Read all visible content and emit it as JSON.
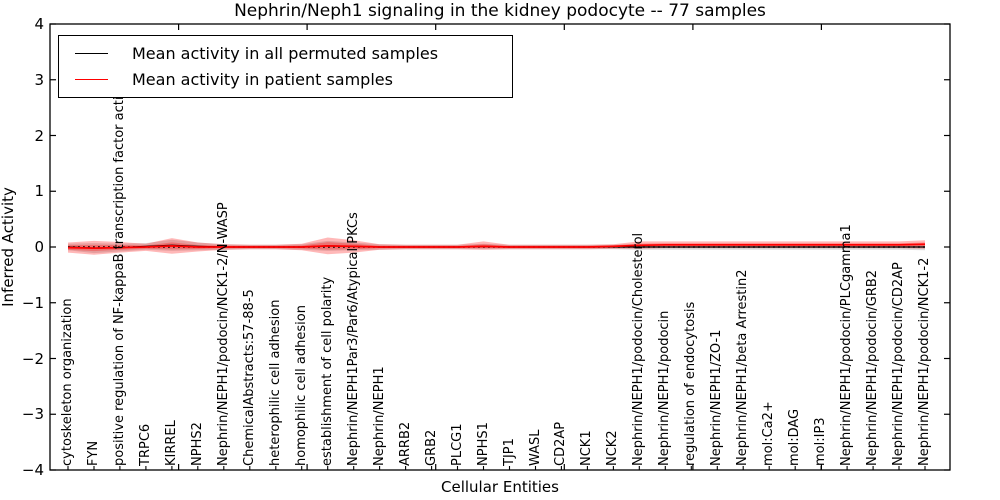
{
  "title": "Nephrin/Neph1 signaling in the kidney podocyte -- 77 samples",
  "legend": {
    "items": [
      {
        "label": "Mean activity in all permuted samples",
        "color": "#000000"
      },
      {
        "label": "Mean activity in patient samples",
        "color": "#ff0000"
      }
    ],
    "position": "upper-left"
  },
  "axes": {
    "ylabel": "Inferred Activity",
    "xlabel": "Cellular Entities"
  },
  "chart_data": {
    "type": "line",
    "title": "Nephrin/Neph1 signaling in the kidney podocyte -- 77 samples",
    "xlabel": "Cellular Entities",
    "ylabel": "Inferred Activity",
    "ylim": [
      -4,
      4
    ],
    "xlim": [
      0,
      35
    ],
    "grid": false,
    "legend_position": "upper-left",
    "ytick_labels": [
      "4",
      "3",
      "2",
      "1",
      "0",
      "−1",
      "−2",
      "−3",
      "−4"
    ],
    "zero_line": {
      "y": 0,
      "style": "dotted",
      "color": "#000000"
    },
    "colors": {
      "permuted_band": "rgba(0,0,0,0.14)",
      "patient_band": "rgba(255,0,0,0.28)"
    },
    "categories": [
      "cytoskeleton organization",
      "FYN",
      "positive regulation of NF-kappaB transcription factor activity",
      "TRPC6",
      "KIRREL",
      "NPHS2",
      "Nephrin/NEPH1/podocin/NCK1-2/N-WASP",
      "ChemicalAbstracts:57-88-5",
      "heterophilic cell adhesion",
      "homophilic cell adhesion",
      "establishment of cell polarity",
      "Nephrin/NEPH1Par3/Par6/Atypical PKCs",
      "Nephrin/NEPH1",
      "ARRB2",
      "GRB2",
      "PLCG1",
      "NPHS1",
      "TJP1",
      "WASL",
      "CD2AP",
      "NCK1",
      "NCK2",
      "Nephrin/NEPH1/podocin/Cholesterol",
      "Nephrin/NEPH1/podocin",
      "regulation of endocytosis",
      "Nephrin/NEPH1/ZO-1",
      "Nephrin/NEPH1/beta Arrestin2",
      "mol:Ca2+",
      "mol:DAG",
      "mol:IP3",
      "Nephrin/NEPH1/podocin/PLCgamma1",
      "Nephrin/NEPH1/podocin/GRB2",
      "Nephrin/NEPH1/podocin/CD2AP",
      "Nephrin/NEPH1/podocin/NCK1-2"
    ],
    "series": [
      {
        "name": "Mean activity in all permuted samples",
        "color": "#000000",
        "values": [
          0.0,
          -0.02,
          -0.01,
          0.01,
          0.03,
          0.01,
          0.0,
          0.0,
          0.0,
          0.0,
          0.02,
          0.01,
          0.0,
          0.0,
          0.0,
          0.0,
          0.01,
          0.0,
          0.0,
          0.0,
          0.0,
          0.0,
          0.0,
          0.0,
          0.0,
          0.0,
          0.0,
          0.0,
          0.0,
          0.0,
          0.0,
          0.0,
          0.0,
          0.0
        ],
        "band_halfwidth": [
          0.06,
          0.09,
          0.07,
          0.06,
          0.1,
          0.07,
          0.05,
          0.04,
          0.04,
          0.05,
          0.09,
          0.07,
          0.05,
          0.04,
          0.04,
          0.04,
          0.05,
          0.04,
          0.04,
          0.04,
          0.04,
          0.04,
          0.05,
          0.05,
          0.05,
          0.05,
          0.05,
          0.05,
          0.05,
          0.05,
          0.05,
          0.05,
          0.05,
          0.06
        ]
      },
      {
        "name": "Mean activity in patient samples",
        "color": "#ff0000",
        "values": [
          -0.01,
          -0.02,
          -0.01,
          0.0,
          0.02,
          0.0,
          0.0,
          0.0,
          0.0,
          0.0,
          0.02,
          0.01,
          0.0,
          0.0,
          0.0,
          0.0,
          0.01,
          0.0,
          0.0,
          0.0,
          0.0,
          0.01,
          0.03,
          0.04,
          0.04,
          0.04,
          0.04,
          0.04,
          0.04,
          0.04,
          0.04,
          0.04,
          0.04,
          0.05
        ],
        "band_upper": [
          0.08,
          0.11,
          0.09,
          0.06,
          0.16,
          0.08,
          0.05,
          0.04,
          0.04,
          0.06,
          0.17,
          0.12,
          0.05,
          0.04,
          0.04,
          0.04,
          0.1,
          0.04,
          0.04,
          0.04,
          0.04,
          0.05,
          0.1,
          0.1,
          0.1,
          0.1,
          0.1,
          0.1,
          0.1,
          0.1,
          0.1,
          0.1,
          0.1,
          0.12
        ],
        "band_lower": [
          -0.1,
          -0.14,
          -0.1,
          -0.07,
          -0.12,
          -0.08,
          -0.05,
          -0.04,
          -0.04,
          -0.06,
          -0.13,
          -0.1,
          -0.05,
          -0.04,
          -0.04,
          -0.04,
          -0.05,
          -0.04,
          -0.04,
          -0.04,
          -0.04,
          -0.03,
          -0.03,
          -0.02,
          -0.02,
          -0.02,
          -0.02,
          -0.02,
          -0.02,
          -0.02,
          -0.02,
          -0.02,
          -0.02,
          -0.03
        ]
      }
    ]
  }
}
